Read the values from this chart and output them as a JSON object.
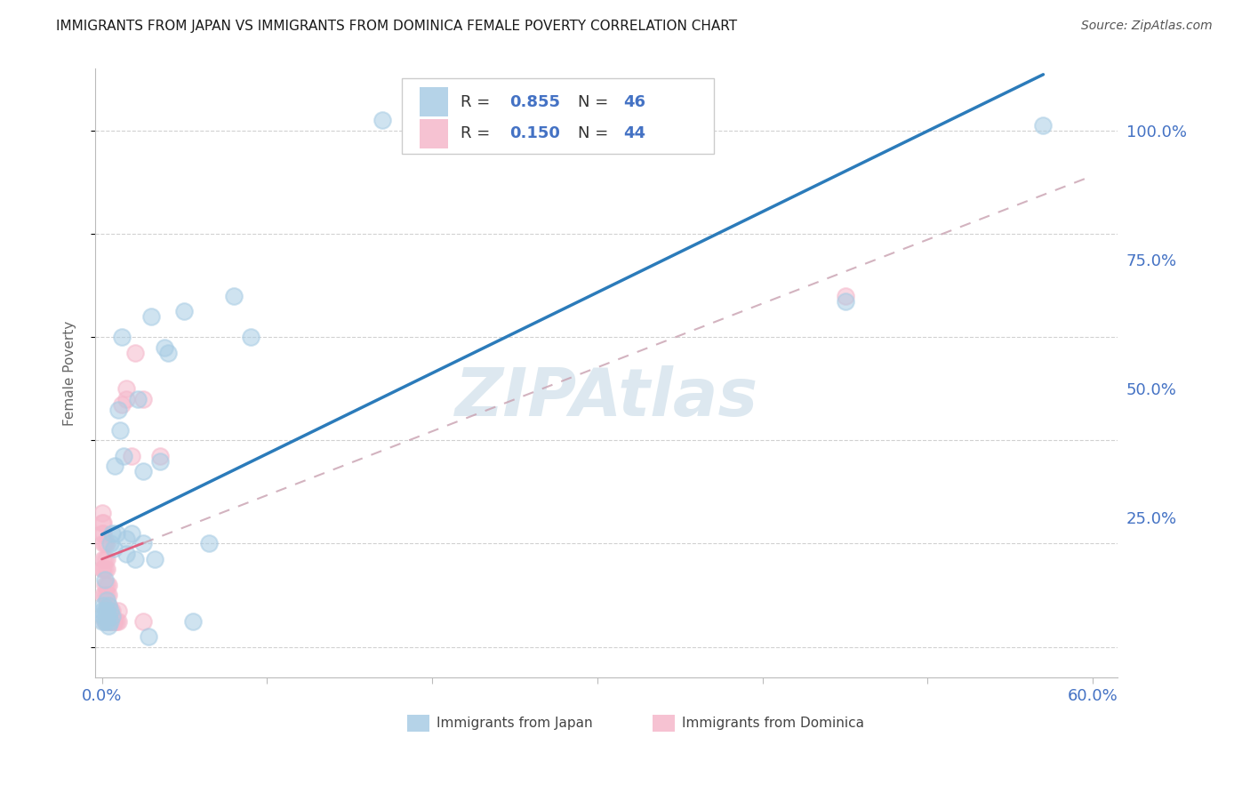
{
  "title": "IMMIGRANTS FROM JAPAN VS IMMIGRANTS FROM DOMINICA FEMALE POVERTY CORRELATION CHART",
  "source": "Source: ZipAtlas.com",
  "ylabel": "Female Poverty",
  "xlim_min": -0.004,
  "xlim_max": 0.615,
  "ylim_min": -0.06,
  "ylim_max": 1.12,
  "x_ticks": [
    0.0,
    0.1,
    0.2,
    0.3,
    0.4,
    0.5,
    0.6
  ],
  "x_tick_labels": [
    "0.0%",
    "",
    "",
    "",
    "",
    "",
    "60.0%"
  ],
  "y_ticks": [
    0.0,
    0.25,
    0.5,
    0.75,
    1.0
  ],
  "y_tick_labels_right": [
    "",
    "25.0%",
    "50.0%",
    "75.0%",
    "100.0%"
  ],
  "watermark": "ZIPAtlas",
  "japan_R": "0.855",
  "japan_N": "46",
  "dominica_R": "0.150",
  "dominica_N": "44",
  "japan_dot_color": "#a8cce4",
  "dominica_dot_color": "#f5b8cb",
  "japan_line_color": "#2b7bba",
  "dominica_line_color": "#e06080",
  "dominica_dash_color": "#d4a0b0",
  "tick_color": "#4472C4",
  "label_color": "#333333",
  "value_color": "#4472C4",
  "japan_x": [
    0.0,
    0.0,
    0.001,
    0.001,
    0.002,
    0.002,
    0.002,
    0.003,
    0.003,
    0.003,
    0.004,
    0.004,
    0.004,
    0.005,
    0.005,
    0.005,
    0.006,
    0.006,
    0.007,
    0.008,
    0.009,
    0.01,
    0.011,
    0.012,
    0.013,
    0.015,
    0.015,
    0.018,
    0.02,
    0.022,
    0.025,
    0.025,
    0.028,
    0.03,
    0.032,
    0.035,
    0.038,
    0.04,
    0.05,
    0.055,
    0.065,
    0.08,
    0.09,
    0.17,
    0.45,
    0.57
  ],
  "japan_y": [
    0.05,
    0.07,
    0.06,
    0.08,
    0.05,
    0.07,
    0.13,
    0.05,
    0.07,
    0.09,
    0.04,
    0.06,
    0.08,
    0.05,
    0.07,
    0.2,
    0.06,
    0.22,
    0.19,
    0.35,
    0.22,
    0.46,
    0.42,
    0.6,
    0.37,
    0.18,
    0.21,
    0.22,
    0.17,
    0.48,
    0.2,
    0.34,
    0.02,
    0.64,
    0.17,
    0.36,
    0.58,
    0.57,
    0.65,
    0.05,
    0.2,
    0.68,
    0.6,
    1.02,
    0.67,
    1.01
  ],
  "dominica_x": [
    0.0,
    0.0,
    0.0,
    0.0,
    0.001,
    0.001,
    0.001,
    0.001,
    0.001,
    0.001,
    0.002,
    0.002,
    0.002,
    0.002,
    0.002,
    0.002,
    0.003,
    0.003,
    0.003,
    0.003,
    0.003,
    0.003,
    0.004,
    0.004,
    0.004,
    0.004,
    0.005,
    0.005,
    0.006,
    0.006,
    0.007,
    0.008,
    0.009,
    0.01,
    0.01,
    0.012,
    0.015,
    0.015,
    0.018,
    0.02,
    0.025,
    0.025,
    0.035,
    0.45
  ],
  "dominica_y": [
    0.15,
    0.22,
    0.24,
    0.26,
    0.1,
    0.15,
    0.17,
    0.2,
    0.22,
    0.24,
    0.05,
    0.1,
    0.12,
    0.15,
    0.17,
    0.2,
    0.07,
    0.1,
    0.12,
    0.15,
    0.17,
    0.2,
    0.05,
    0.08,
    0.1,
    0.12,
    0.05,
    0.07,
    0.05,
    0.07,
    0.05,
    0.05,
    0.05,
    0.05,
    0.07,
    0.47,
    0.48,
    0.5,
    0.37,
    0.57,
    0.05,
    0.48,
    0.37,
    0.68
  ]
}
